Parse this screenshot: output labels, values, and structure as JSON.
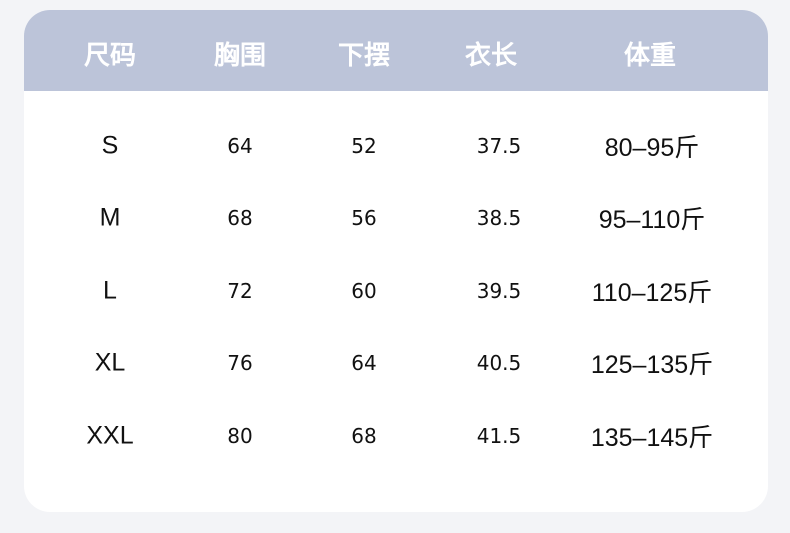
{
  "table": {
    "headers": [
      "尺码",
      "胸围",
      "下摆",
      "衣长",
      "体重"
    ],
    "rows": [
      [
        "S",
        "64",
        "52",
        "37.5",
        "80–95斤"
      ],
      [
        "M",
        "68",
        "56",
        "38.5",
        "95–110斤"
      ],
      [
        "L",
        "72",
        "60",
        "39.5",
        "110–125斤"
      ],
      [
        "XL",
        "76",
        "64",
        "40.5",
        "125–135斤"
      ],
      [
        "XXL",
        "80",
        "68",
        "41.5",
        "135–145斤"
      ]
    ]
  },
  "colors": {
    "header_bg": "#bcc4d9",
    "header_text": "#ffffff",
    "page_bg": "#f3f4f7"
  }
}
